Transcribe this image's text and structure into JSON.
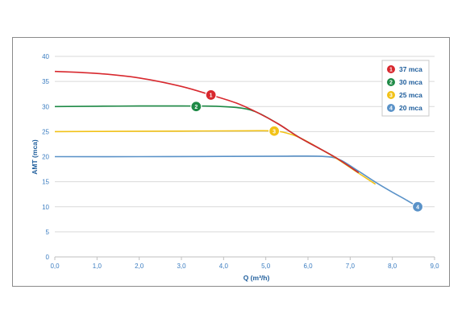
{
  "chart_data": {
    "type": "line",
    "title": "",
    "xlabel": "Q (m³/h)",
    "ylabel": "AMT (mca)",
    "xlim": [
      0,
      9
    ],
    "ylim": [
      0,
      40
    ],
    "xticks": [
      "0,0",
      "1,0",
      "2,0",
      "3,0",
      "4,0",
      "5,0",
      "6,0",
      "7,0",
      "8,0",
      "9,0"
    ],
    "yticks": [
      "0",
      "5",
      "10",
      "15",
      "20",
      "25",
      "30",
      "35",
      "40"
    ],
    "grid": "horizontal",
    "legend_position": "top-right",
    "series": [
      {
        "name": "37 mca",
        "marker_label": "1",
        "color": "#d8282e",
        "marker": {
          "x": 3.7,
          "y": 32.3
        },
        "points": [
          [
            0,
            37
          ],
          [
            1.0,
            36.6
          ],
          [
            2.0,
            35.7
          ],
          [
            3.0,
            34.0
          ],
          [
            3.7,
            32.3
          ],
          [
            4.3,
            30.7
          ],
          [
            4.8,
            28.8
          ],
          [
            5.3,
            26.5
          ],
          [
            5.8,
            23.8
          ],
          [
            6.3,
            21.5
          ],
          [
            6.7,
            19.6
          ],
          [
            7.2,
            16.8
          ]
        ]
      },
      {
        "name": "30 mca",
        "marker_label": "2",
        "color": "#1e8a46",
        "marker": {
          "x": 3.35,
          "y": 30
        },
        "points": [
          [
            0,
            30
          ],
          [
            1.0,
            30.05
          ],
          [
            2.0,
            30.1
          ],
          [
            3.0,
            30.1
          ],
          [
            3.8,
            30.05
          ],
          [
            4.4,
            29.7
          ],
          [
            4.8,
            28.8
          ],
          [
            5.3,
            26.5
          ],
          [
            5.8,
            23.8
          ],
          [
            6.3,
            21.5
          ],
          [
            6.7,
            19.6
          ],
          [
            7.2,
            16.8
          ]
        ]
      },
      {
        "name": "25 mca",
        "marker_label": "3",
        "color": "#f2c218",
        "marker": {
          "x": 5.2,
          "y": 25.1
        },
        "points": [
          [
            0,
            25
          ],
          [
            1.5,
            25.05
          ],
          [
            3.0,
            25.1
          ],
          [
            4.5,
            25.15
          ],
          [
            5.1,
            25.15
          ],
          [
            5.4,
            24.9
          ],
          [
            5.8,
            23.8
          ],
          [
            6.3,
            21.5
          ],
          [
            6.7,
            19.5
          ],
          [
            7.2,
            16.7
          ],
          [
            7.6,
            14.5
          ]
        ]
      },
      {
        "name": "20 mca",
        "marker_label": "4",
        "color": "#5a92c8",
        "marker": {
          "x": 8.6,
          "y": 10
        },
        "points": [
          [
            0,
            20
          ],
          [
            2.0,
            20.0
          ],
          [
            4.0,
            20.05
          ],
          [
            5.5,
            20.1
          ],
          [
            6.2,
            20.1
          ],
          [
            6.55,
            19.9
          ],
          [
            6.8,
            19.2
          ],
          [
            7.2,
            17.1
          ],
          [
            7.6,
            14.9
          ],
          [
            8.0,
            12.9
          ],
          [
            8.3,
            11.5
          ],
          [
            8.6,
            10.0
          ]
        ]
      }
    ]
  }
}
